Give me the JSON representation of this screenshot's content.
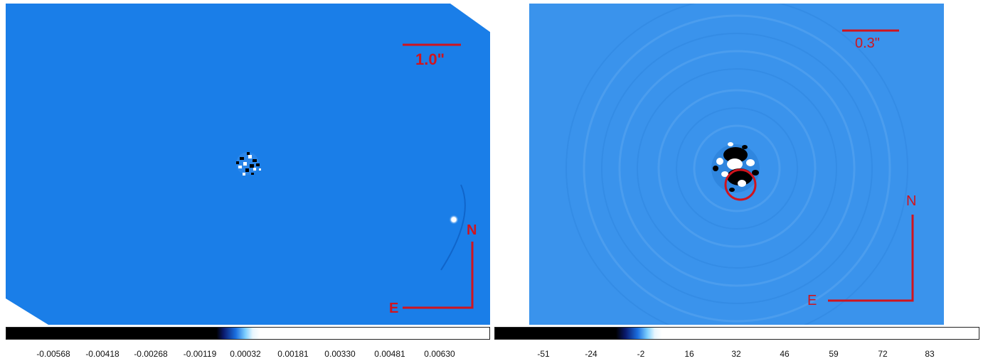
{
  "left_panel": {
    "scale_bar_label": "1.0\"",
    "compass_north": "N",
    "compass_east": "E",
    "colorbar_ticks": [
      "-0.00568",
      "-0.00418",
      "-0.00268",
      "-0.00119",
      "0.00032",
      "0.00181",
      "0.00330",
      "0.00481",
      "0.00630"
    ],
    "background_color": "#1a7ee8",
    "annotation_color": "#d0141e"
  },
  "right_panel": {
    "scale_bar_label": "0.3\"",
    "compass_north": "N",
    "compass_east": "E",
    "colorbar_ticks": [
      "-51",
      "-24",
      "-2",
      "16",
      "32",
      "46",
      "59",
      "72",
      "83"
    ],
    "background_color": "#3a93ec",
    "annotation_color": "#d0141e"
  }
}
